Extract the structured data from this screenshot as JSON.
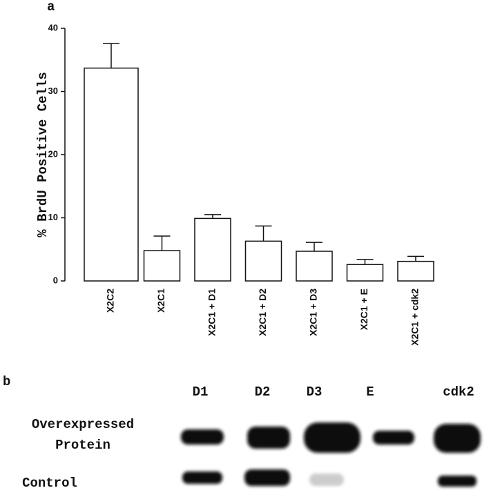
{
  "chart_data": {
    "type": "bar",
    "panel_label": "a",
    "y_label": "% BrdU Positive Cells",
    "categories": [
      "X2C2",
      "X2C1",
      "X2C1 + D1",
      "X2C1 + D2",
      "X2C1 + D3",
      "X2C1 + E",
      "X2C1 + cdk2"
    ],
    "values": [
      33.7,
      4.8,
      9.9,
      6.3,
      4.7,
      2.6,
      3.1
    ],
    "errors": [
      3.9,
      2.3,
      0.6,
      2.4,
      1.4,
      0.8,
      0.8
    ],
    "color": "#ffffff",
    "ylim": [
      0,
      40
    ],
    "yticks": [
      0,
      10,
      20,
      30,
      40
    ],
    "grid": false
  },
  "blot": {
    "panel_label": "b",
    "lanes": [
      "D1",
      "D2",
      "D3",
      "E",
      "cdk2"
    ],
    "rows": [
      "Overexpressed\nProtein",
      "Control"
    ]
  }
}
